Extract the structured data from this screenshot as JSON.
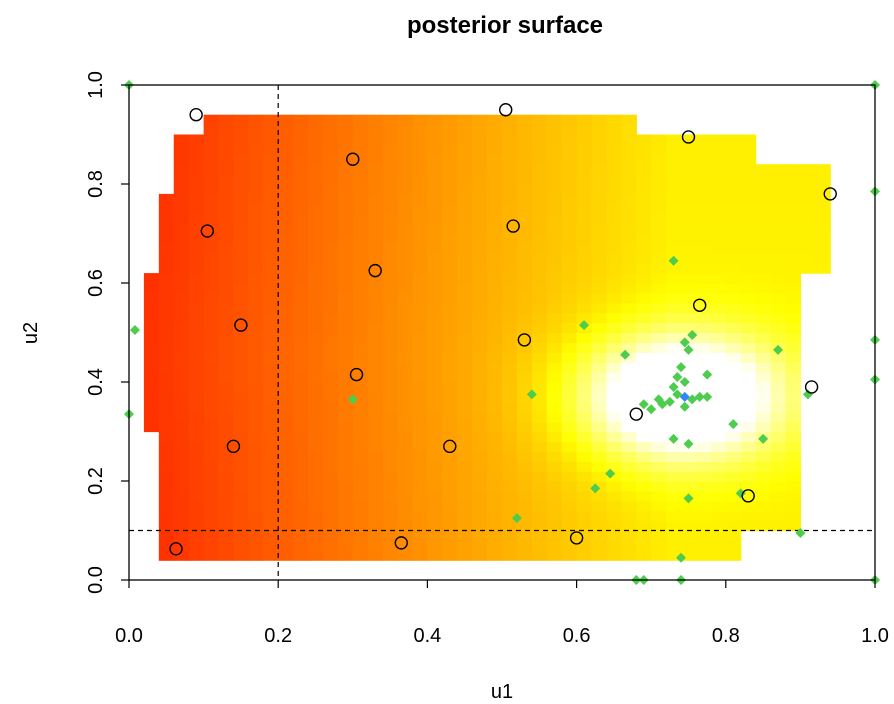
{
  "chart_data": {
    "type": "heatmap",
    "title": "posterior surface",
    "xlabel": "u1",
    "ylabel": "u2",
    "xlim": [
      0,
      1
    ],
    "ylim": [
      0,
      1
    ],
    "x_ticks": [
      "0.0",
      "0.2",
      "0.4",
      "0.6",
      "0.8",
      "1.0"
    ],
    "y_ticks": [
      "0.0",
      "0.2",
      "0.4",
      "0.6",
      "0.8",
      "1.0"
    ],
    "reference_lines": {
      "vertical_x": 0.2,
      "horizontal_y": 0.1
    },
    "colors": {
      "low": "#ff0000",
      "mid": "#ffff00",
      "high": "#ffffff",
      "circle": "#000000",
      "diamond": "#4dcc4d",
      "best": "#3385ff"
    },
    "surface": {
      "x_range": [
        0.0,
        1.0
      ],
      "y_range": [
        0.0,
        1.0
      ],
      "peak": [
        0.74,
        0.37
      ],
      "row_x_extents": [
        {
          "y": [
            0.05,
            0.1
          ],
          "x": [
            0.05,
            0.81
          ]
        },
        {
          "y": [
            0.1,
            0.31
          ],
          "x": [
            0.05,
            0.9
          ]
        },
        {
          "y": [
            0.31,
            0.63
          ],
          "x": [
            0.02,
            0.9
          ]
        },
        {
          "y": [
            0.63,
            0.78
          ],
          "x": [
            0.045,
            0.93
          ]
        },
        {
          "y": [
            0.78,
            0.84
          ],
          "x": [
            0.07,
            0.93
          ]
        },
        {
          "y": [
            0.84,
            0.91
          ],
          "x": [
            0.07,
            0.84
          ]
        },
        {
          "y": [
            0.91,
            0.93
          ],
          "x": [
            0.095,
            0.67
          ]
        }
      ]
    },
    "open_circles": [
      {
        "x": 0.09,
        "y": 0.94
      },
      {
        "x": 0.505,
        "y": 0.95
      },
      {
        "x": 0.75,
        "y": 0.895
      },
      {
        "x": 0.3,
        "y": 0.85
      },
      {
        "x": 0.94,
        "y": 0.78
      },
      {
        "x": 0.105,
        "y": 0.705
      },
      {
        "x": 0.515,
        "y": 0.715
      },
      {
        "x": 0.33,
        "y": 0.625
      },
      {
        "x": 0.765,
        "y": 0.555
      },
      {
        "x": 0.15,
        "y": 0.515
      },
      {
        "x": 0.53,
        "y": 0.485
      },
      {
        "x": 0.305,
        "y": 0.415
      },
      {
        "x": 0.915,
        "y": 0.39
      },
      {
        "x": 0.68,
        "y": 0.335
      },
      {
        "x": 0.14,
        "y": 0.27
      },
      {
        "x": 0.43,
        "y": 0.27
      },
      {
        "x": 0.83,
        "y": 0.17
      },
      {
        "x": 0.6,
        "y": 0.085
      },
      {
        "x": 0.365,
        "y": 0.075
      },
      {
        "x": 0.063,
        "y": 0.063
      }
    ],
    "diamonds": [
      {
        "x": 0.0,
        "y": 1.0
      },
      {
        "x": 1.0,
        "y": 1.0
      },
      {
        "x": 1.0,
        "y": 0.785
      },
      {
        "x": 0.008,
        "y": 0.505
      },
      {
        "x": 0.0,
        "y": 0.335
      },
      {
        "x": 1.0,
        "y": 0.485
      },
      {
        "x": 1.0,
        "y": 0.405
      },
      {
        "x": 1.0,
        "y": 0.0
      },
      {
        "x": 0.73,
        "y": 0.645
      },
      {
        "x": 0.61,
        "y": 0.515
      },
      {
        "x": 0.665,
        "y": 0.455
      },
      {
        "x": 0.87,
        "y": 0.465
      },
      {
        "x": 0.745,
        "y": 0.48
      },
      {
        "x": 0.755,
        "y": 0.495
      },
      {
        "x": 0.75,
        "y": 0.465
      },
      {
        "x": 0.74,
        "y": 0.43
      },
      {
        "x": 0.735,
        "y": 0.41
      },
      {
        "x": 0.775,
        "y": 0.415
      },
      {
        "x": 0.73,
        "y": 0.39
      },
      {
        "x": 0.735,
        "y": 0.375
      },
      {
        "x": 0.745,
        "y": 0.4
      },
      {
        "x": 0.725,
        "y": 0.36
      },
      {
        "x": 0.715,
        "y": 0.355
      },
      {
        "x": 0.755,
        "y": 0.365
      },
      {
        "x": 0.765,
        "y": 0.37
      },
      {
        "x": 0.775,
        "y": 0.37
      },
      {
        "x": 0.7,
        "y": 0.345
      },
      {
        "x": 0.69,
        "y": 0.355
      },
      {
        "x": 0.745,
        "y": 0.35
      },
      {
        "x": 0.71,
        "y": 0.365
      },
      {
        "x": 0.73,
        "y": 0.285
      },
      {
        "x": 0.75,
        "y": 0.275
      },
      {
        "x": 0.81,
        "y": 0.315
      },
      {
        "x": 0.85,
        "y": 0.285
      },
      {
        "x": 0.91,
        "y": 0.375
      },
      {
        "x": 0.54,
        "y": 0.375
      },
      {
        "x": 0.3,
        "y": 0.365
      },
      {
        "x": 0.645,
        "y": 0.215
      },
      {
        "x": 0.625,
        "y": 0.185
      },
      {
        "x": 0.52,
        "y": 0.125
      },
      {
        "x": 0.75,
        "y": 0.165
      },
      {
        "x": 0.82,
        "y": 0.175
      },
      {
        "x": 0.9,
        "y": 0.095
      },
      {
        "x": 0.74,
        "y": 0.045
      },
      {
        "x": 0.68,
        "y": 0.0
      },
      {
        "x": 0.69,
        "y": 0.0
      },
      {
        "x": 0.74,
        "y": 0.0
      }
    ],
    "best_point": {
      "x": 0.745,
      "y": 0.37
    }
  }
}
